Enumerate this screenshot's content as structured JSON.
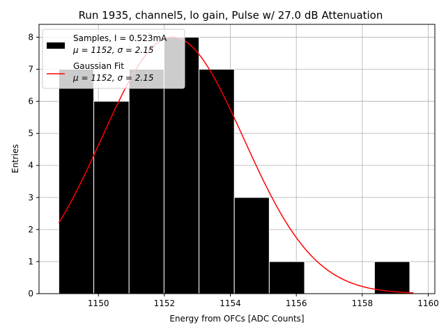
{
  "chart_data": {
    "type": "bar",
    "title": "Run 1935, channel5, lo gain, Pulse w/ 27.0 dB Attenuation",
    "xlabel": "Energy from OFCs [ADC Counts]",
    "ylabel": "Entries",
    "xlim": [
      1148.2,
      1160.2
    ],
    "ylim": [
      0,
      8.4
    ],
    "xticks": [
      1150,
      1152,
      1154,
      1156,
      1158,
      1160
    ],
    "yticks": [
      0,
      1,
      2,
      3,
      4,
      5,
      6,
      7,
      8
    ],
    "grid": true,
    "legend_position": "top-left",
    "bins": [
      {
        "left": 1148.8,
        "right": 1149.86,
        "value": 7
      },
      {
        "left": 1149.86,
        "right": 1150.93,
        "value": 6
      },
      {
        "left": 1150.93,
        "right": 1151.99,
        "value": 7
      },
      {
        "left": 1151.99,
        "right": 1153.05,
        "value": 8
      },
      {
        "left": 1153.05,
        "right": 1154.12,
        "value": 7
      },
      {
        "left": 1154.12,
        "right": 1155.18,
        "value": 3
      },
      {
        "left": 1155.18,
        "right": 1156.25,
        "value": 1
      },
      {
        "left": 1156.25,
        "right": 1157.31,
        "value": 0
      },
      {
        "left": 1157.31,
        "right": 1158.37,
        "value": 0
      },
      {
        "left": 1158.37,
        "right": 1159.44,
        "value": 1
      }
    ],
    "fit": {
      "mu": 1152.25,
      "sigma": 2.15,
      "amplitude": 8.0,
      "xmin": 1148.8,
      "xmax": 1159.55
    },
    "series": [
      {
        "name": "Samples, I = 0.523mA",
        "stats": "μ = 1152, σ = 2.15",
        "color": "#000000",
        "kind": "bar"
      },
      {
        "name": "Gaussian Fit",
        "stats": "μ = 1152, σ = 2.15",
        "color": "#ff0000",
        "kind": "line"
      }
    ]
  }
}
